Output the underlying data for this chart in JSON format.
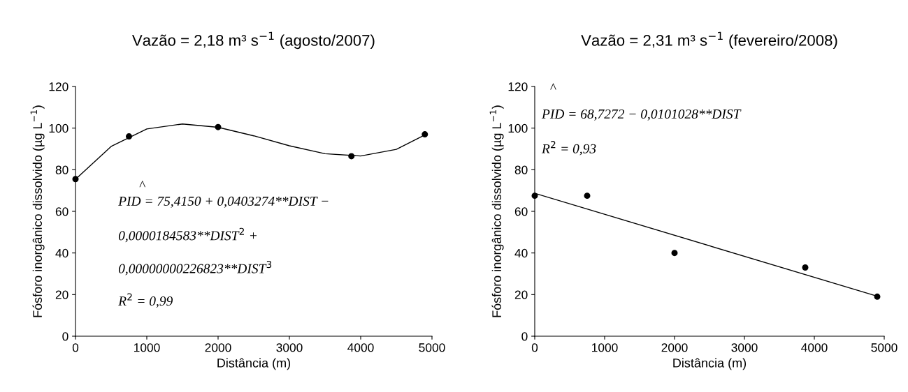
{
  "chart_data": [
    {
      "type": "scatter",
      "title": "Vazão = 2,18 m³ s$^{−1}$ (agosto/2007)",
      "xlabel": "Distância (m)",
      "ylabel": "Fósforo inorgânico dissolvido (µg L$^{−1}$)",
      "xlim": [
        0,
        5000
      ],
      "xticks": [
        0,
        1000,
        2000,
        3000,
        4000,
        5000
      ],
      "ylim": [
        0,
        120
      ],
      "yticks": [
        0,
        20,
        40,
        60,
        80,
        100,
        120
      ],
      "grid": false,
      "legend": false,
      "x": [
        0,
        750,
        2000,
        3870,
        4900
      ],
      "series": [
        {
          "marker": "circle",
          "color": "#000000",
          "values": [
            75.5,
            96,
            100.5,
            86.5,
            97
          ]
        },
        {
          "type": "line",
          "marker": "none",
          "color": "#000000",
          "x": [
            0,
            500,
            1000,
            1500,
            2000,
            2500,
            3000,
            3500,
            4000,
            4500,
            4900
          ],
          "values": [
            75.4,
            91.2,
            99.6,
            102,
            100.4,
            96.3,
            91.5,
            87.7,
            86.6,
            89.8,
            96.7
          ]
        }
      ],
      "annotations": [
        "^",
        "PID = 75,4150 + 0,0403274**DIST −",
        "0,0000184583**DIST$^{2}$ +",
        "0,00000000226823**DIST$^{3}$",
        "R$^{2}$ = 0,99"
      ]
    },
    {
      "type": "scatter",
      "title": "Vazão = 2,31 m³ s$^{−1}$ (fevereiro/2008)",
      "xlabel": "Distância (m)",
      "ylabel": "Fósforo inorgânico dissolvido (µg L$^{−1}$)",
      "xlim": [
        0,
        5000
      ],
      "xticks": [
        0,
        1000,
        2000,
        3000,
        4000,
        5000
      ],
      "ylim": [
        0,
        120
      ],
      "yticks": [
        0,
        20,
        40,
        60,
        80,
        100,
        120
      ],
      "grid": false,
      "legend": false,
      "x": [
        0,
        750,
        2000,
        3870,
        4900
      ],
      "series": [
        {
          "marker": "circle",
          "color": "#000000",
          "values": [
            67.5,
            67.5,
            40,
            33,
            19
          ]
        },
        {
          "type": "line",
          "marker": "none",
          "color": "#000000",
          "x": [
            0,
            4900
          ],
          "values": [
            68.7,
            19.2
          ]
        }
      ],
      "annotations": [
        "^",
        "PID = 68,7272 − 0,0101028**DIST",
        "R$^{2}$ = 0,93"
      ]
    }
  ]
}
